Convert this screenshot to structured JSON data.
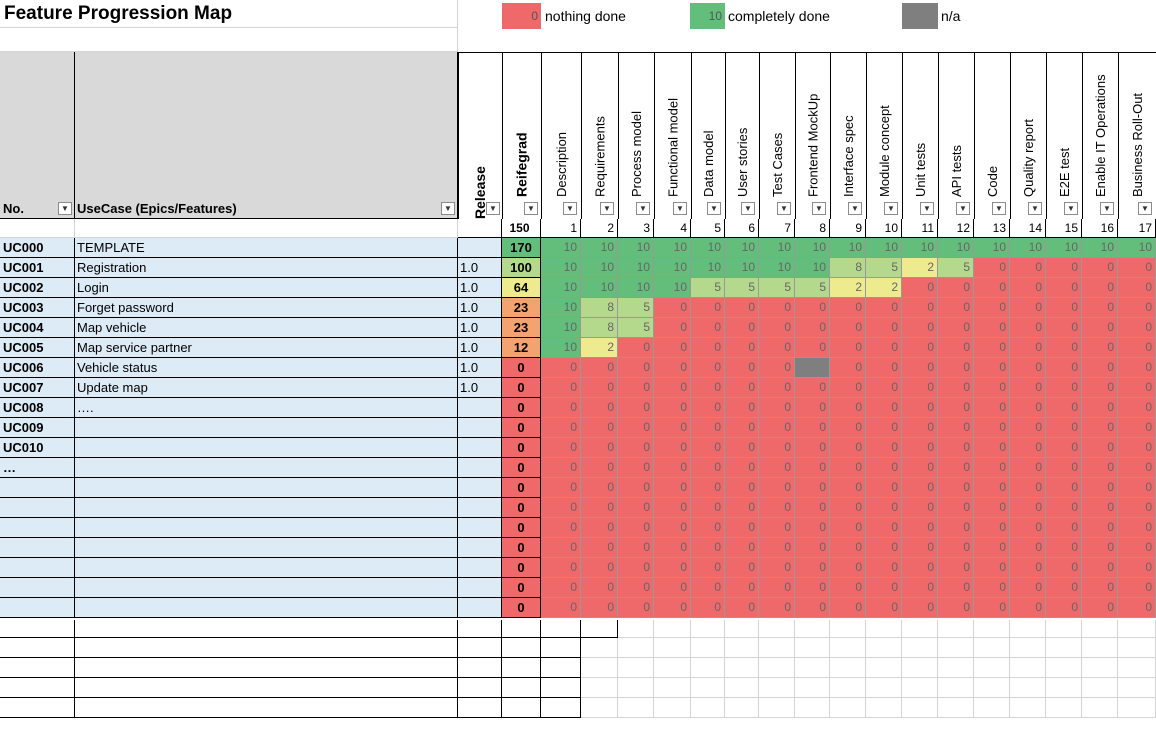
{
  "title": "Feature Progression Map",
  "legend": [
    {
      "value": "0",
      "label": "nothing done",
      "color": "#f0696a"
    },
    {
      "value": "10",
      "label": "completely done",
      "color": "#63be7b"
    },
    {
      "value": "",
      "label": "n/a",
      "color": "#7f7f7f"
    }
  ],
  "headers": {
    "no": "No.",
    "usecase": "UseCase (Epics/Features)",
    "release": "Release",
    "reifegrad": "Reifegrad",
    "tasks": [
      "Description",
      "Requirements",
      "Process model",
      "Functional model",
      "Data model",
      "User stories",
      "Test Cases",
      "Frontend MockUp",
      "Interface spec",
      "Module concept",
      "Unit tests",
      "API tests",
      "Code",
      "Quality report",
      "E2E test",
      "Enable IT Operations",
      "Business Roll-Out"
    ]
  },
  "totals": {
    "reifegrad": "150",
    "task_numbers": [
      "1",
      "2",
      "3",
      "4",
      "5",
      "6",
      "7",
      "8",
      "9",
      "10",
      "11",
      "12",
      "13",
      "14",
      "15",
      "16",
      "17"
    ]
  },
  "rows": [
    {
      "no": "UC000",
      "usecase": "TEMPLATE",
      "release": "",
      "reifegrad": "170",
      "values": [
        "10",
        "10",
        "10",
        "10",
        "10",
        "10",
        "10",
        "10",
        "10",
        "10",
        "10",
        "10",
        "10",
        "10",
        "10",
        "10",
        "10"
      ]
    },
    {
      "no": "UC001",
      "usecase": "Registration",
      "release": "1.0",
      "reifegrad": "100",
      "values": [
        "10",
        "10",
        "10",
        "10",
        "10",
        "10",
        "10",
        "10",
        "8",
        "5",
        "2",
        "5",
        "0",
        "0",
        "0",
        "0",
        "0"
      ]
    },
    {
      "no": "UC002",
      "usecase": "Login",
      "release": "1.0",
      "reifegrad": "64",
      "values": [
        "10",
        "10",
        "10",
        "10",
        "5",
        "5",
        "5",
        "5",
        "2",
        "2",
        "0",
        "0",
        "0",
        "0",
        "0",
        "0",
        "0"
      ]
    },
    {
      "no": "UC003",
      "usecase": "Forget password",
      "release": "1.0",
      "reifegrad": "23",
      "values": [
        "10",
        "8",
        "5",
        "0",
        "0",
        "0",
        "0",
        "0",
        "0",
        "0",
        "0",
        "0",
        "0",
        "0",
        "0",
        "0",
        "0"
      ]
    },
    {
      "no": "UC004",
      "usecase": "Map vehicle",
      "release": "1.0",
      "reifegrad": "23",
      "values": [
        "10",
        "8",
        "5",
        "0",
        "0",
        "0",
        "0",
        "0",
        "0",
        "0",
        "0",
        "0",
        "0",
        "0",
        "0",
        "0",
        "0"
      ]
    },
    {
      "no": "UC005",
      "usecase": "Map service partner",
      "release": "1.0",
      "reifegrad": "12",
      "values": [
        "10",
        "2",
        "0",
        "0",
        "0",
        "0",
        "0",
        "0",
        "0",
        "0",
        "0",
        "0",
        "0",
        "0",
        "0",
        "0",
        "0"
      ]
    },
    {
      "no": "UC006",
      "usecase": "Vehicle status",
      "release": "1.0",
      "reifegrad": "0",
      "values": [
        "0",
        "0",
        "0",
        "0",
        "0",
        "0",
        "0",
        "n/a",
        "0",
        "0",
        "0",
        "0",
        "0",
        "0",
        "0",
        "0",
        "0"
      ]
    },
    {
      "no": "UC007",
      "usecase": "Update map",
      "release": "1.0",
      "reifegrad": "0",
      "values": [
        "0",
        "0",
        "0",
        "0",
        "0",
        "0",
        "0",
        "0",
        "0",
        "0",
        "0",
        "0",
        "0",
        "0",
        "0",
        "0",
        "0"
      ]
    },
    {
      "no": "UC008",
      "usecase": "….",
      "release": "",
      "reifegrad": "0",
      "values": [
        "0",
        "0",
        "0",
        "0",
        "0",
        "0",
        "0",
        "0",
        "0",
        "0",
        "0",
        "0",
        "0",
        "0",
        "0",
        "0",
        "0"
      ]
    },
    {
      "no": "UC009",
      "usecase": "",
      "release": "",
      "reifegrad": "0",
      "values": [
        "0",
        "0",
        "0",
        "0",
        "0",
        "0",
        "0",
        "0",
        "0",
        "0",
        "0",
        "0",
        "0",
        "0",
        "0",
        "0",
        "0"
      ]
    },
    {
      "no": "UC010",
      "usecase": "",
      "release": "",
      "reifegrad": "0",
      "values": [
        "0",
        "0",
        "0",
        "0",
        "0",
        "0",
        "0",
        "0",
        "0",
        "0",
        "0",
        "0",
        "0",
        "0",
        "0",
        "0",
        "0"
      ]
    },
    {
      "no": "…",
      "usecase": "",
      "release": "",
      "reifegrad": "0",
      "values": [
        "0",
        "0",
        "0",
        "0",
        "0",
        "0",
        "0",
        "0",
        "0",
        "0",
        "0",
        "0",
        "0",
        "0",
        "0",
        "0",
        "0"
      ]
    },
    {
      "no": "",
      "usecase": "",
      "release": "",
      "reifegrad": "0",
      "values": [
        "0",
        "0",
        "0",
        "0",
        "0",
        "0",
        "0",
        "0",
        "0",
        "0",
        "0",
        "0",
        "0",
        "0",
        "0",
        "0",
        "0"
      ]
    },
    {
      "no": "",
      "usecase": "",
      "release": "",
      "reifegrad": "0",
      "values": [
        "0",
        "0",
        "0",
        "0",
        "0",
        "0",
        "0",
        "0",
        "0",
        "0",
        "0",
        "0",
        "0",
        "0",
        "0",
        "0",
        "0"
      ]
    },
    {
      "no": "",
      "usecase": "",
      "release": "",
      "reifegrad": "0",
      "values": [
        "0",
        "0",
        "0",
        "0",
        "0",
        "0",
        "0",
        "0",
        "0",
        "0",
        "0",
        "0",
        "0",
        "0",
        "0",
        "0",
        "0"
      ]
    },
    {
      "no": "",
      "usecase": "",
      "release": "",
      "reifegrad": "0",
      "values": [
        "0",
        "0",
        "0",
        "0",
        "0",
        "0",
        "0",
        "0",
        "0",
        "0",
        "0",
        "0",
        "0",
        "0",
        "0",
        "0",
        "0"
      ]
    },
    {
      "no": "",
      "usecase": "",
      "release": "",
      "reifegrad": "0",
      "values": [
        "0",
        "0",
        "0",
        "0",
        "0",
        "0",
        "0",
        "0",
        "0",
        "0",
        "0",
        "0",
        "0",
        "0",
        "0",
        "0",
        "0"
      ]
    },
    {
      "no": "",
      "usecase": "",
      "release": "",
      "reifegrad": "0",
      "values": [
        "0",
        "0",
        "0",
        "0",
        "0",
        "0",
        "0",
        "0",
        "0",
        "0",
        "0",
        "0",
        "0",
        "0",
        "0",
        "0",
        "0"
      ]
    },
    {
      "no": "",
      "usecase": "",
      "release": "",
      "reifegrad": "0",
      "values": [
        "0",
        "0",
        "0",
        "0",
        "0",
        "0",
        "0",
        "0",
        "0",
        "0",
        "0",
        "0",
        "0",
        "0",
        "0",
        "0",
        "0"
      ]
    }
  ],
  "colors": {
    "nothing": "#f0696a",
    "done": "#63be7b",
    "na": "#7f7f7f",
    "blue_row": "#ddebf7",
    "header_gray": "#d9d9d9"
  }
}
